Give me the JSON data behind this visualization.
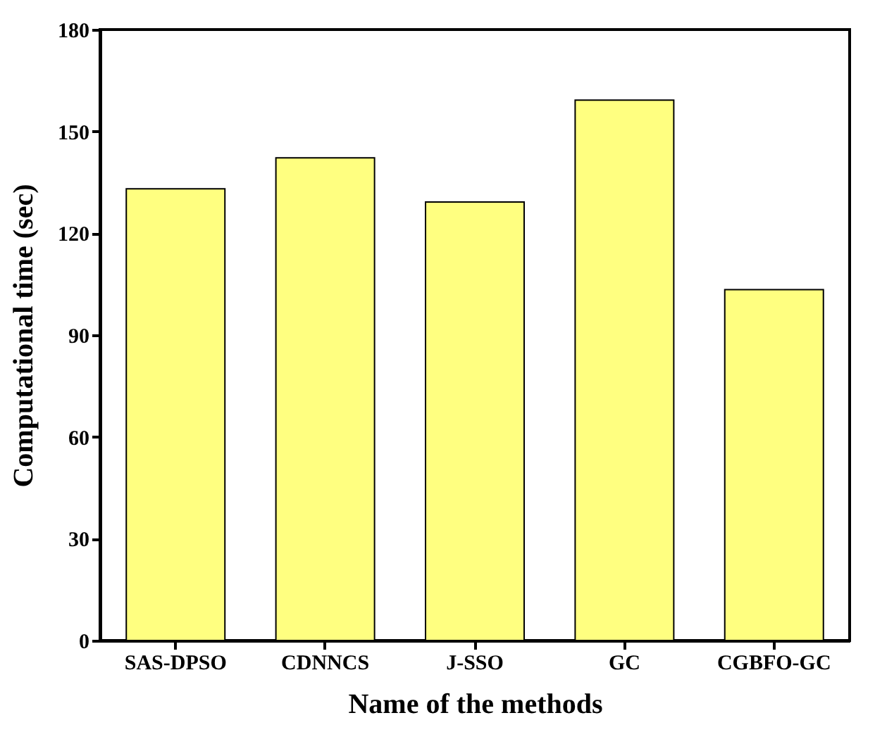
{
  "chart_data": {
    "type": "bar",
    "xlabel": "Name of the methods",
    "ylabel": "Computational time (sec)",
    "categories": [
      "SAS-DPSO",
      "CDNNCS",
      "J-SSO",
      "GC",
      "CGBFO-GC"
    ],
    "values": [
      133.1,
      142.2,
      129.2,
      159.2,
      103.4
    ],
    "color": "#ffff80",
    "ylim": [
      0,
      180
    ],
    "yticks": [
      0,
      30,
      60,
      90,
      120,
      150,
      180
    ],
    "grid": false
  }
}
